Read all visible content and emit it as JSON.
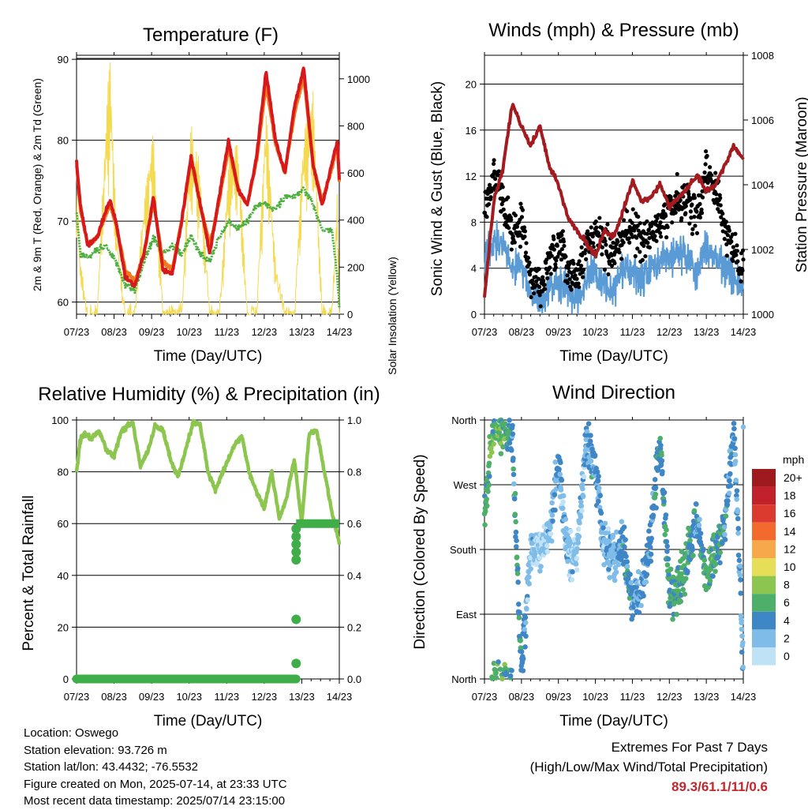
{
  "station": {
    "location_label": "Location: Oswego",
    "elevation_label": "Station elevation: 93.726 m",
    "latlon_label": "Station lat/lon: 43.4432; -76.5532",
    "created_label": "Figure created on Mon, 2025-07-14, at 23:33 UTC",
    "timestamp_label": "Most recent data timestamp: 2025/07/14 23:15:00"
  },
  "extremes": {
    "title": "Extremes For Past 7 Days",
    "subtitle": "(High/Low/Max Wind/Total Precipitation)",
    "values": "89.3/61.1/11/0.6"
  },
  "colors": {
    "temp_2m": "#d7191c",
    "temp_9m": "#f07a1e",
    "dewpoint": "#4daf3e",
    "insolation": "#f5d94e",
    "wind": "#5b9bd5",
    "gust": "#000000",
    "pressure": "#a31a1f",
    "rh": "#8cc64f",
    "precip": "#3fae49"
  },
  "chart_data": [
    {
      "type": "line",
      "title": "Temperature (F)",
      "xlabel": "Time (Day/UTC)",
      "ylabel": "2m & 9m T (Red, Orange) & 2m Td (Green)",
      "ylabel_right": "Solar Insolation (Yellow)",
      "x_ticks": [
        "07/23",
        "08/23",
        "09/23",
        "10/23",
        "11/23",
        "12/23",
        "13/23",
        "14/23"
      ],
      "y_ticks": [
        60,
        70,
        80,
        90
      ],
      "y2_ticks": [
        0,
        200,
        400,
        600,
        800,
        1000
      ],
      "ylim": [
        58.5,
        90.5
      ],
      "y2lim": [
        0,
        1100
      ],
      "x": [
        0,
        0.1,
        0.3,
        0.55,
        0.8,
        0.9,
        1.05,
        1.3,
        1.55,
        1.8,
        2.05,
        2.3,
        2.55,
        2.8,
        3.05,
        3.3,
        3.55,
        3.8,
        4.05,
        4.3,
        4.55,
        4.8,
        5.05,
        5.3,
        5.55,
        5.8,
        6.05,
        6.3,
        6.55,
        6.8,
        6.95,
        7.0
      ],
      "series": [
        {
          "name": "2m T",
          "values": [
            77.5,
            72,
            67,
            68,
            71.5,
            72.5,
            70,
            63,
            62,
            66,
            73,
            64,
            63.5,
            70,
            78,
            72,
            66,
            73,
            80,
            74,
            72,
            78,
            88.5,
            80,
            76,
            84,
            89,
            77,
            72,
            77,
            80,
            75
          ]
        },
        {
          "name": "9m T",
          "values": [
            77,
            71.5,
            67,
            68,
            71,
            72,
            69.5,
            64,
            62.5,
            66,
            72.5,
            65,
            64,
            70,
            77.5,
            72,
            67,
            72.5,
            79,
            74,
            72,
            77.5,
            87,
            79.5,
            76,
            83,
            88,
            77,
            72.5,
            76.5,
            79.5,
            75
          ]
        },
        {
          "name": "2m Td",
          "values": [
            71,
            66,
            65.5,
            66.5,
            67,
            66,
            65,
            62,
            61.5,
            65,
            68,
            66,
            67,
            66,
            68,
            66,
            65,
            68,
            70,
            69,
            70,
            72,
            72,
            71.5,
            73,
            73,
            74,
            72,
            69,
            69,
            63,
            59.5
          ]
        },
        {
          "name": "Solar Insolation",
          "values": [
            620,
            200,
            0,
            0,
            900,
            1080,
            400,
            0,
            0,
            500,
            780,
            0,
            0,
            0,
            820,
            600,
            0,
            0,
            650,
            750,
            0,
            0,
            900,
            200,
            0,
            0,
            780,
            950,
            0,
            0,
            500,
            0
          ]
        }
      ]
    },
    {
      "type": "scatter",
      "title": "Winds (mph) & Pressure (mb)",
      "xlabel": "Time (Day/UTC)",
      "ylabel": "Sonic Wind & Gust (Blue, Black)",
      "ylabel_right": "Station Pressure (Maroon)",
      "x_ticks": [
        "07/23",
        "08/23",
        "09/23",
        "10/23",
        "11/23",
        "12/23",
        "13/23",
        "14/23"
      ],
      "y_ticks": [
        0,
        4,
        8,
        12,
        16,
        20
      ],
      "y2_ticks": [
        1000,
        1002,
        1004,
        1006,
        1008
      ],
      "ylim": [
        0,
        22.5
      ],
      "y2lim": [
        1000,
        1008
      ],
      "x": [
        0,
        0.25,
        0.5,
        0.75,
        1.0,
        1.25,
        1.5,
        1.75,
        2.0,
        2.25,
        2.5,
        2.75,
        3.0,
        3.25,
        3.5,
        3.75,
        4.0,
        4.25,
        4.5,
        4.75,
        5.0,
        5.25,
        5.5,
        5.75,
        6.0,
        6.25,
        6.5,
        6.75,
        7.0
      ],
      "series": [
        {
          "name": "Sonic Wind",
          "values": [
            5,
            6.5,
            6,
            4,
            4.5,
            1.5,
            1,
            2,
            3,
            2,
            1.5,
            3,
            3.5,
            2.5,
            2,
            4,
            3.5,
            3,
            4,
            4.5,
            5,
            5.5,
            5,
            3.5,
            6,
            5,
            4,
            3,
            2
          ]
        },
        {
          "name": "Gust",
          "values": [
            9,
            12,
            10,
            7,
            8,
            3,
            2.5,
            4,
            6,
            4,
            3,
            6,
            7,
            6,
            5,
            7,
            8,
            6,
            7,
            8,
            9,
            10,
            10,
            8,
            13,
            11,
            7,
            6,
            4
          ]
        },
        {
          "name": "Station Pressure",
          "values": [
            1000.5,
            1003.5,
            1004.5,
            1006.5,
            1005.8,
            1005.2,
            1005.8,
            1004.6,
            1004.0,
            1003.0,
            1002.6,
            1002.2,
            1001.8,
            1002.6,
            1002.4,
            1003.2,
            1004.1,
            1003.5,
            1003.6,
            1004.0,
            1003.3,
            1003.6,
            1003.9,
            1004.3,
            1003.8,
            1004.0,
            1004.6,
            1005.2,
            1004.8
          ]
        }
      ]
    },
    {
      "type": "line",
      "title": "Relative Humidity (%) & Precipitation (in)",
      "xlabel": "Time (Day/UTC)",
      "ylabel": "Percent & Total Rainfall",
      "x_ticks": [
        "07/23",
        "08/23",
        "09/23",
        "10/23",
        "11/23",
        "12/23",
        "13/23",
        "14/23"
      ],
      "y_ticks": [
        0,
        20,
        40,
        60,
        80,
        100
      ],
      "y2_ticks": [
        0.0,
        0.2,
        0.4,
        0.6,
        0.8,
        1.0
      ],
      "ylim": [
        0,
        100
      ],
      "y2lim": [
        0,
        1.0
      ],
      "x": [
        0,
        0.1,
        0.2,
        0.4,
        0.6,
        0.8,
        1.0,
        1.2,
        1.5,
        1.7,
        1.9,
        2.1,
        2.3,
        2.5,
        2.7,
        2.9,
        3.1,
        3.3,
        3.5,
        3.7,
        3.9,
        4.2,
        4.4,
        4.6,
        4.8,
        5.0,
        5.2,
        5.4,
        5.6,
        5.8,
        6.0,
        6.2,
        6.4,
        6.6,
        6.8,
        7.0
      ],
      "series": [
        {
          "name": "Relative Humidity",
          "values": [
            80,
            92,
            95,
            93,
            96,
            88,
            86,
            96,
            99,
            82,
            88,
            98,
            96,
            85,
            78,
            88,
            99,
            98,
            80,
            73,
            80,
            90,
            94,
            80,
            72,
            66,
            80,
            62,
            70,
            85,
            60,
            95,
            96,
            80,
            65,
            52
          ]
        },
        {
          "name": "Total Precipitation",
          "values": [
            0,
            0,
            0,
            0,
            0,
            0,
            0,
            0,
            0,
            0,
            0,
            0,
            0,
            0,
            0,
            0,
            0,
            0,
            0,
            0,
            0,
            0,
            0,
            0,
            0,
            0,
            0,
            0,
            0,
            0.06,
            0.6,
            0.6,
            0.6,
            0.6,
            0.6,
            0.6
          ]
        }
      ]
    },
    {
      "type": "scatter",
      "title": "Wind Direction",
      "xlabel": "Time (Day/UTC)",
      "ylabel": "Direction (Colored By Speed)",
      "x_ticks": [
        "07/23",
        "08/23",
        "09/23",
        "10/23",
        "11/23",
        "12/23",
        "13/23",
        "14/23"
      ],
      "y_ticks": [
        "North",
        "East",
        "South",
        "West",
        "North"
      ],
      "ylim": [
        0,
        360
      ],
      "legend_title": "mph",
      "legend_labels": [
        "20+",
        "18",
        "16",
        "14",
        "12",
        "10",
        "8",
        "6",
        "4",
        "2",
        "0"
      ],
      "legend_colors": [
        "#9e1a1d",
        "#c2202a",
        "#db3a2f",
        "#f26a2d",
        "#f7a84a",
        "#e7de58",
        "#8cc64f",
        "#4daf6a",
        "#3f86c6",
        "#7fbde8",
        "#bfe2f7"
      ],
      "legend_placement": "right",
      "x": [
        0,
        0.25,
        0.5,
        0.75,
        1.0,
        1.25,
        1.5,
        1.75,
        2.0,
        2.25,
        2.5,
        2.75,
        3.0,
        3.25,
        3.5,
        3.75,
        4.0,
        4.25,
        4.5,
        4.75,
        5.0,
        5.25,
        5.5,
        5.75,
        6.0,
        6.25,
        6.5,
        6.75,
        7.0
      ],
      "series": [
        {
          "name": "Direction",
          "values": [
            240,
            350,
            350,
            340,
            10,
            180,
            185,
            200,
            300,
            170,
            180,
            330,
            290,
            180,
            170,
            185,
            100,
            130,
            200,
            330,
            120,
            130,
            170,
            220,
            140,
            180,
            220,
            350,
            10
          ]
        }
      ]
    }
  ]
}
